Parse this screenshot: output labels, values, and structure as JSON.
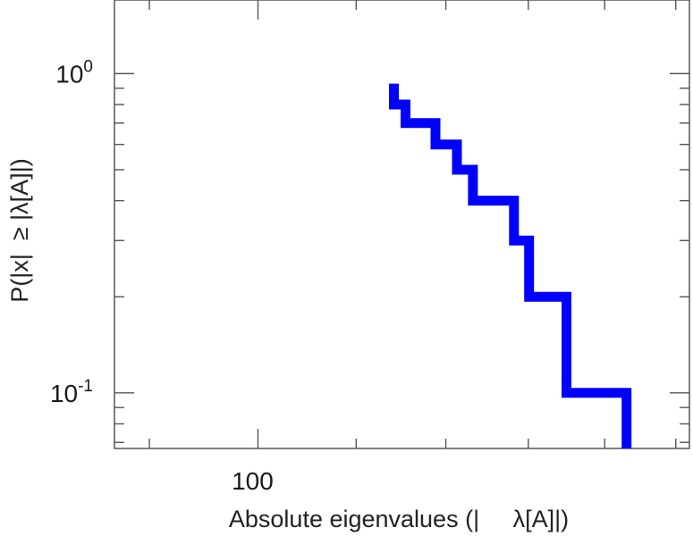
{
  "chart_data": {
    "type": "line",
    "step": true,
    "xlabel": "Absolute eigenvalues (|     λ[A]|)",
    "ylabel": "P(|x|  ≥ |λ[A]|)",
    "x_scale": "log",
    "y_scale": "log",
    "xlim": [
      87,
      152
    ],
    "ylim": [
      0.067,
      1.7
    ],
    "x_ticks": [
      {
        "value": 100,
        "label": "100"
      }
    ],
    "y_ticks": [
      {
        "value": 1,
        "base": "10",
        "exp": "0"
      },
      {
        "value": 0.1,
        "base": "10",
        "exp": "-1"
      }
    ],
    "grid": false,
    "series": [
      {
        "color": "#0000ff",
        "x": [
          114.1,
          114.1,
          115.4,
          115.4,
          118.8,
          118.8,
          121.3,
          121.3,
          123.2,
          123.2,
          128.2,
          128.2,
          130.1,
          130.1,
          134.9,
          134.9,
          143.0,
          143.0
        ],
        "y": [
          0.93,
          0.8,
          0.8,
          0.7,
          0.7,
          0.6,
          0.6,
          0.5,
          0.5,
          0.4,
          0.4,
          0.3,
          0.3,
          0.2,
          0.2,
          0.1,
          0.1,
          0.067
        ]
      }
    ]
  }
}
